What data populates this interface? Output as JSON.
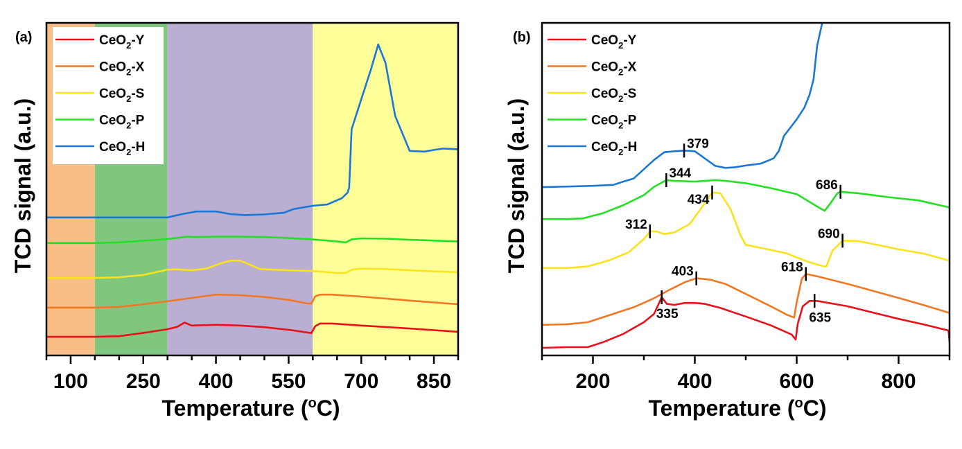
{
  "chart_data": [
    {
      "type": "line",
      "panel_label": "(a)",
      "xlabel": "Temperature (°C)",
      "xlabel_parts": {
        "main": "Temperature (",
        "sup": "o",
        "end": "C)"
      },
      "ylabel": "TCD signal (a.u.)",
      "xlim": [
        50,
        900
      ],
      "ylim": [
        0,
        100
      ],
      "xticks": [
        100,
        250,
        400,
        550,
        700,
        850
      ],
      "xticks_minor": [
        50,
        150,
        200,
        300,
        350,
        450,
        500,
        600,
        650,
        750,
        800,
        900
      ],
      "yticks": [],
      "grid": false,
      "legend_position": "top-left",
      "regions": [
        {
          "x0": 50,
          "x1": 150,
          "color": "#f9be86"
        },
        {
          "x0": 150,
          "x1": 300,
          "color": "#7fc67f"
        },
        {
          "x0": 300,
          "x1": 600,
          "color": "#bbaed3"
        },
        {
          "x0": 600,
          "x1": 900,
          "color": "#feff99"
        }
      ],
      "series": [
        {
          "name": "CeO2-Y",
          "label_main": "CeO",
          "label_sub": "2",
          "label_end": "-Y",
          "color": "#e8111a",
          "x": [
            50,
            100,
            150,
            200,
            250,
            300,
            320,
            335,
            350,
            400,
            450,
            500,
            550,
            590,
            597,
            605,
            615,
            640,
            700,
            800,
            900
          ],
          "y": [
            5.6,
            5.6,
            5.6,
            5.8,
            6.8,
            7.9,
            8.6,
            9.9,
            9.0,
            9.2,
            9.0,
            8.5,
            7.7,
            6.9,
            6.7,
            8.8,
            9.6,
            9.6,
            9.0,
            8.1,
            7.1
          ]
        },
        {
          "name": "CeO2-X",
          "label_main": "CeO",
          "label_sub": "2",
          "label_end": "-X",
          "color": "#f07822",
          "x": [
            50,
            100,
            150,
            200,
            250,
            300,
            350,
            400,
            450,
            500,
            550,
            590,
            597,
            605,
            615,
            640,
            700,
            800,
            900
          ],
          "y": [
            14.4,
            14.4,
            14.4,
            14.6,
            15.4,
            16.3,
            17.3,
            18.3,
            18.1,
            17.6,
            16.7,
            15.6,
            15.6,
            17.8,
            18.3,
            18.3,
            17.7,
            16.5,
            15.4
          ]
        },
        {
          "name": "CeO2-S",
          "label_main": "CeO",
          "label_sub": "2",
          "label_end": "-S",
          "color": "#f9e31b",
          "x": [
            50,
            100,
            150,
            200,
            250,
            300,
            320,
            350,
            380,
            410,
            430,
            450,
            470,
            490,
            520,
            550,
            600,
            650,
            668,
            680,
            700,
            750,
            800,
            900
          ],
          "y": [
            23.3,
            23.3,
            23.3,
            23.5,
            24.2,
            25.8,
            25.9,
            25.6,
            26.1,
            27.7,
            28.5,
            28.5,
            27.3,
            26.0,
            25.8,
            25.6,
            25.4,
            24.8,
            24.8,
            25.8,
            26.1,
            26.0,
            25.6,
            25.0
          ]
        },
        {
          "name": "CeO2-P",
          "label_main": "CeO",
          "label_sub": "2",
          "label_end": "-P",
          "color": "#23e023",
          "x": [
            50,
            100,
            150,
            200,
            250,
            300,
            340,
            360,
            400,
            450,
            500,
            550,
            600,
            650,
            668,
            680,
            700,
            750,
            800,
            900
          ],
          "y": [
            33.8,
            33.8,
            33.8,
            34.0,
            34.5,
            35.0,
            35.7,
            35.6,
            35.7,
            35.7,
            35.6,
            35.3,
            34.9,
            34.3,
            34.0,
            34.9,
            35.2,
            35.1,
            34.8,
            34.3
          ]
        },
        {
          "name": "CeO2-H",
          "label_main": "CeO",
          "label_sub": "2",
          "label_end": "-H",
          "color": "#1a77d6",
          "x": [
            50,
            100,
            150,
            200,
            250,
            300,
            330,
            360,
            400,
            430,
            460,
            500,
            540,
            560,
            580,
            600,
            630,
            660,
            672,
            675,
            680,
            700,
            720,
            735,
            750,
            770,
            800,
            830,
            850,
            870,
            900
          ],
          "y": [
            41.5,
            41.5,
            41.5,
            41.5,
            41.5,
            41.5,
            42.5,
            43.3,
            43.3,
            42.5,
            42.2,
            42.4,
            42.9,
            44.0,
            44.5,
            45.0,
            45.4,
            47.3,
            49.0,
            50.5,
            68.0,
            77.0,
            86.0,
            93.5,
            88.0,
            72.0,
            61.5,
            61.3,
            61.8,
            62.2,
            62.0
          ]
        }
      ]
    },
    {
      "type": "line",
      "panel_label": "(b)",
      "xlabel": "Temperature (°C)",
      "xlabel_parts": {
        "main": "Temperature (",
        "sup": "o",
        "end": "C)"
      },
      "ylabel": "TCD signal (a.u.)",
      "xlim": [
        100,
        900
      ],
      "ylim": [
        0,
        100
      ],
      "xticks": [
        200,
        400,
        600,
        800
      ],
      "xticks_minor": [
        100,
        300,
        500,
        700,
        900
      ],
      "yticks": [],
      "grid": false,
      "legend_position": "top-left",
      "series": [
        {
          "name": "CeO2-Y",
          "label_main": "CeO",
          "label_sub": "2",
          "label_end": "-Y",
          "color": "#e8111a",
          "x": [
            100,
            150,
            190,
            220,
            260,
            300,
            320,
            335,
            345,
            360,
            380,
            400,
            420,
            450,
            500,
            550,
            590,
            598,
            602,
            612,
            625,
            640,
            700,
            760,
            800,
            850,
            898,
            900
          ],
          "y": [
            2.3,
            2.5,
            2.5,
            4.0,
            6.5,
            10.0,
            12.5,
            17.5,
            15.5,
            15.2,
            15.8,
            15.8,
            15.5,
            14.3,
            11.7,
            9.0,
            6.3,
            4.8,
            9.5,
            14.8,
            16.4,
            16.4,
            14.8,
            12.5,
            11.0,
            9.3,
            7.5,
            4.0
          ]
        },
        {
          "name": "CeO2-X",
          "label_main": "CeO",
          "label_sub": "2",
          "label_end": "-X",
          "color": "#f07822",
          "x": [
            100,
            150,
            190,
            240,
            280,
            320,
            350,
            380,
            403,
            430,
            460,
            500,
            550,
            580,
            595,
            600,
            610,
            618,
            640,
            700,
            750,
            800,
            850,
            900
          ],
          "y": [
            9.2,
            9.4,
            10.0,
            12.5,
            14.5,
            17.2,
            19.7,
            22.0,
            23.2,
            22.8,
            21.5,
            18.5,
            14.7,
            12.3,
            11.4,
            16.0,
            23.0,
            24.5,
            23.8,
            21.5,
            19.4,
            17.3,
            15.1,
            12.8
          ]
        },
        {
          "name": "CeO2-S",
          "label_main": "CeO",
          "label_sub": "2",
          "label_end": "-S",
          "color": "#f9e31b",
          "x": [
            100,
            150,
            190,
            230,
            270,
            300,
            312,
            325,
            340,
            360,
            390,
            420,
            434,
            450,
            470,
            490,
            500,
            540,
            580,
            620,
            650,
            658,
            670,
            690,
            720,
            760,
            800,
            850,
            900
          ],
          "y": [
            26.3,
            26.3,
            26.8,
            28.5,
            31.0,
            35.0,
            37.3,
            37.3,
            36.5,
            37.0,
            39.5,
            45.8,
            49.0,
            48.8,
            44.0,
            36.0,
            33.3,
            32.0,
            30.7,
            28.3,
            26.9,
            26.7,
            31.5,
            34.5,
            34.4,
            33.2,
            31.9,
            30.6,
            28.5
          ]
        },
        {
          "name": "CeO2-P",
          "label_main": "CeO",
          "label_sub": "2",
          "label_end": "-P",
          "color": "#23e023",
          "x": [
            100,
            150,
            180,
            220,
            260,
            300,
            320,
            344,
            360,
            400,
            440,
            460,
            500,
            550,
            600,
            640,
            655,
            665,
            680,
            686,
            720,
            780,
            840,
            900
          ],
          "y": [
            41.0,
            41.0,
            41.2,
            42.8,
            45.2,
            48.2,
            50.7,
            52.7,
            52.5,
            52.3,
            52.7,
            52.5,
            51.8,
            50.3,
            48.5,
            44.8,
            43.5,
            45.5,
            48.8,
            49.2,
            48.8,
            47.6,
            46.6,
            44.5
          ]
        },
        {
          "name": "CeO2-H",
          "label_main": "CeO",
          "label_sub": "2",
          "label_end": "-H",
          "color": "#1a77d6",
          "x": [
            100,
            150,
            200,
            240,
            260,
            280,
            300,
            320,
            340,
            360,
            379,
            400,
            420,
            440,
            460,
            480,
            500,
            530,
            555,
            565,
            575,
            590,
            600,
            615,
            625,
            633,
            640,
            650
          ],
          "y": [
            50.6,
            50.8,
            51.0,
            51.3,
            52.3,
            53.2,
            56.0,
            58.8,
            61.1,
            61.4,
            61.6,
            61.4,
            59.2,
            57.0,
            56.4,
            56.6,
            57.1,
            57.7,
            59.3,
            61.5,
            66.0,
            69.0,
            71.0,
            74.5,
            78.3,
            83.0,
            93.0,
            100.0
          ]
        }
      ],
      "annotations": [
        {
          "text": "379",
          "series": "CeO2-H",
          "x": 379,
          "y": 61.6,
          "label_side": "right-above"
        },
        {
          "text": "344",
          "series": "CeO2-P",
          "x": 344,
          "y": 52.7,
          "label_side": "right-above"
        },
        {
          "text": "434",
          "series": "CeO2-S",
          "x": 434,
          "y": 49.0,
          "label_side": "left-below"
        },
        {
          "text": "312",
          "series": "CeO2-S",
          "x": 312,
          "y": 37.3,
          "label_side": "left-above"
        },
        {
          "text": "686",
          "series": "CeO2-P",
          "x": 686,
          "y": 49.2,
          "label_side": "left-above"
        },
        {
          "text": "690",
          "series": "CeO2-S",
          "x": 690,
          "y": 34.5,
          "label_side": "left-above"
        },
        {
          "text": "403",
          "series": "CeO2-X",
          "x": 403,
          "y": 23.2,
          "label_side": "left-above"
        },
        {
          "text": "618",
          "series": "CeO2-X",
          "x": 618,
          "y": 24.5,
          "label_side": "left-above"
        },
        {
          "text": "335",
          "series": "CeO2-Y",
          "x": 335,
          "y": 17.5,
          "label_side": "below"
        },
        {
          "text": "635",
          "series": "CeO2-Y",
          "x": 635,
          "y": 16.4,
          "label_side": "below"
        }
      ]
    }
  ]
}
